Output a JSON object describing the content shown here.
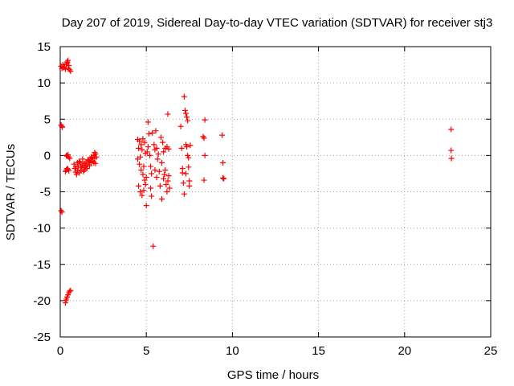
{
  "chart_data": {
    "type": "scatter",
    "title": "Day 207 of 2019, Sidereal Day-to-day VTEC variation (SDTVAR) for receiver stj3",
    "xlabel": "GPS time / hours",
    "ylabel": "SDTVAR / TECUs",
    "xlim": [
      0,
      25
    ],
    "ylim": [
      -25,
      15
    ],
    "xticks": [
      "0",
      "5",
      "10",
      "15",
      "20",
      "25"
    ],
    "yticks": [
      "15",
      "10",
      "5",
      "0",
      "-5",
      "-10",
      "-15",
      "-20",
      "-25"
    ],
    "grid": true,
    "marker": "+",
    "color": "#ff0000",
    "points": [
      [
        0.05,
        12.3
      ],
      [
        0.1,
        12.0
      ],
      [
        0.15,
        12.5
      ],
      [
        0.2,
        12.1
      ],
      [
        0.25,
        12.2
      ],
      [
        0.3,
        11.9
      ],
      [
        0.35,
        12.6
      ],
      [
        0.4,
        12.9
      ],
      [
        0.45,
        13.1
      ],
      [
        0.5,
        12.4
      ],
      [
        0.55,
        11.8
      ],
      [
        0.6,
        11.6
      ],
      [
        0.42,
        12.8
      ],
      [
        0.48,
        12.0
      ],
      [
        0.05,
        4.2
      ],
      [
        0.1,
        4.0
      ],
      [
        0.12,
        3.9
      ],
      [
        0.05,
        -7.6
      ],
      [
        0.1,
        -7.8
      ],
      [
        0.3,
        -20.3
      ],
      [
        0.35,
        -19.8
      ],
      [
        0.4,
        -19.5
      ],
      [
        0.45,
        -19.2
      ],
      [
        0.5,
        -18.9
      ],
      [
        0.55,
        -18.7
      ],
      [
        0.6,
        -18.6
      ],
      [
        0.32,
        -20.0
      ],
      [
        0.3,
        -2.2
      ],
      [
        0.35,
        -2.0
      ],
      [
        0.4,
        -1.8
      ],
      [
        0.45,
        -1.9
      ],
      [
        0.5,
        -2.1
      ],
      [
        0.35,
        0.0
      ],
      [
        0.4,
        -0.1
      ],
      [
        0.45,
        0.1
      ],
      [
        0.5,
        -0.2
      ],
      [
        0.55,
        -0.4
      ],
      [
        0.8,
        -1.2
      ],
      [
        0.85,
        -1.8
      ],
      [
        0.9,
        -2.3
      ],
      [
        0.95,
        -2.6
      ],
      [
        1.0,
        -2.1
      ],
      [
        1.05,
        -1.5
      ],
      [
        1.1,
        -2.4
      ],
      [
        1.15,
        -1.0
      ],
      [
        1.2,
        -2.0
      ],
      [
        1.25,
        -1.7
      ],
      [
        1.3,
        -1.3
      ],
      [
        1.35,
        -2.2
      ],
      [
        1.4,
        -1.1
      ],
      [
        1.45,
        -1.6
      ],
      [
        1.5,
        -0.9
      ],
      [
        1.55,
        -1.8
      ],
      [
        1.6,
        -1.2
      ],
      [
        1.65,
        -0.7
      ],
      [
        1.7,
        -1.4
      ],
      [
        1.75,
        -0.5
      ],
      [
        1.8,
        -1.0
      ],
      [
        1.85,
        -0.3
      ],
      [
        1.9,
        -0.8
      ],
      [
        1.95,
        0.0
      ],
      [
        2.0,
        -0.4
      ],
      [
        2.05,
        0.2
      ],
      [
        2.1,
        -0.2
      ],
      [
        1.0,
        -1.0
      ],
      [
        1.2,
        -1.5
      ],
      [
        1.4,
        -2.0
      ],
      [
        1.6,
        -0.6
      ],
      [
        1.8,
        -0.2
      ],
      [
        2.0,
        0.4
      ],
      [
        1.1,
        -0.8
      ],
      [
        1.3,
        -0.5
      ],
      [
        1.5,
        -1.4
      ],
      [
        1.7,
        -0.9
      ],
      [
        0.9,
        -1.6
      ],
      [
        1.95,
        -1.0
      ],
      [
        2.05,
        -1.1
      ],
      [
        4.5,
        2.2
      ],
      [
        4.6,
        2.0
      ],
      [
        4.7,
        1.5
      ],
      [
        4.8,
        2.3
      ],
      [
        4.9,
        1.8
      ],
      [
        4.5,
        -0.5
      ],
      [
        4.6,
        -1.2
      ],
      [
        4.7,
        -2.0
      ],
      [
        4.8,
        -2.6
      ],
      [
        4.9,
        -3.4
      ],
      [
        4.55,
        -4.2
      ],
      [
        4.65,
        -5.0
      ],
      [
        4.75,
        -5.5
      ],
      [
        4.85,
        -4.8
      ],
      [
        4.95,
        -4.0
      ],
      [
        5.0,
        -3.0
      ],
      [
        5.0,
        -6.9
      ],
      [
        5.05,
        0.5
      ],
      [
        5.1,
        1.2
      ],
      [
        5.1,
        4.6
      ],
      [
        5.15,
        3.0
      ],
      [
        5.2,
        0.0
      ],
      [
        5.25,
        -1.5
      ],
      [
        5.3,
        -2.5
      ],
      [
        5.3,
        -5.6
      ],
      [
        5.35,
        3.1
      ],
      [
        5.4,
        -12.5
      ],
      [
        5.45,
        1.5
      ],
      [
        5.5,
        0.8
      ],
      [
        5.5,
        -2.0
      ],
      [
        5.55,
        3.4
      ],
      [
        5.6,
        1.0
      ],
      [
        5.6,
        -3.0
      ],
      [
        5.65,
        -0.5
      ],
      [
        5.7,
        0.2
      ],
      [
        5.75,
        -2.2
      ],
      [
        5.8,
        -4.2
      ],
      [
        5.85,
        2.5
      ],
      [
        5.9,
        -1.0
      ],
      [
        5.9,
        -6.0
      ],
      [
        5.95,
        1.8
      ],
      [
        6.0,
        0.5
      ],
      [
        6.0,
        -3.2
      ],
      [
        6.05,
        -2.6
      ],
      [
        6.1,
        1.0
      ],
      [
        6.15,
        -4.0
      ],
      [
        6.2,
        -5.0
      ],
      [
        6.2,
        1.2
      ],
      [
        6.25,
        5.7
      ],
      [
        6.25,
        -3.5
      ],
      [
        6.3,
        0.9
      ],
      [
        6.3,
        -2.8
      ],
      [
        6.35,
        -4.5
      ],
      [
        4.55,
        1.0
      ],
      [
        4.65,
        -0.2
      ],
      [
        4.75,
        0.8
      ],
      [
        4.85,
        -1.5
      ],
      [
        4.95,
        0.3
      ],
      [
        5.25,
        -4.5
      ],
      [
        6.1,
        -2.0
      ],
      [
        7.0,
        4.0
      ],
      [
        7.05,
        1.0
      ],
      [
        7.1,
        -1.8
      ],
      [
        7.1,
        -2.4
      ],
      [
        7.15,
        -3.8
      ],
      [
        7.2,
        -5.3
      ],
      [
        7.2,
        8.1
      ],
      [
        7.25,
        6.2
      ],
      [
        7.3,
        5.8
      ],
      [
        7.3,
        1.5
      ],
      [
        7.35,
        5.3
      ],
      [
        7.35,
        1.2
      ],
      [
        7.4,
        4.8
      ],
      [
        7.4,
        0.0
      ],
      [
        7.45,
        -0.3
      ],
      [
        7.45,
        -1.6
      ],
      [
        7.5,
        -3.5
      ],
      [
        7.5,
        -4.2
      ],
      [
        7.55,
        1.4
      ],
      [
        7.3,
        -2.5
      ],
      [
        8.3,
        2.6
      ],
      [
        8.35,
        2.4
      ],
      [
        8.4,
        4.9
      ],
      [
        8.4,
        0.0
      ],
      [
        8.35,
        -3.4
      ],
      [
        9.4,
        2.8
      ],
      [
        9.45,
        -1.0
      ],
      [
        9.45,
        -3.1
      ],
      [
        9.5,
        -3.2
      ],
      [
        22.7,
        3.6
      ],
      [
        22.7,
        0.7
      ],
      [
        22.72,
        -0.4
      ]
    ]
  }
}
